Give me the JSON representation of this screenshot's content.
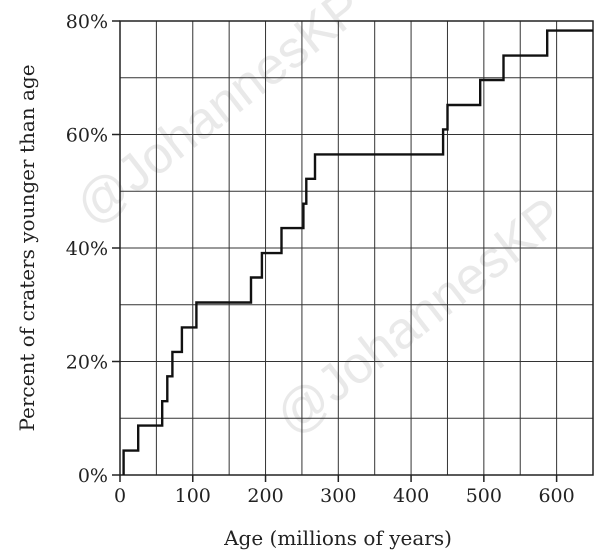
{
  "chart_data": {
    "type": "line",
    "step": true,
    "xlabel": "Age (millions of years)",
    "ylabel": "Percent of craters younger than age",
    "xlim": [
      0,
      650
    ],
    "ylim": [
      0,
      80
    ],
    "xticks": [
      0,
      100,
      200,
      300,
      400,
      500,
      600
    ],
    "xtick_labels": [
      "0",
      "100",
      "200",
      "300",
      "400",
      "500",
      "600"
    ],
    "yticks": [
      0,
      20,
      40,
      60,
      80
    ],
    "ytick_labels": [
      "0%",
      "20%",
      "40%",
      "60%",
      "80%"
    ],
    "grid": true,
    "grid_x_step": 50,
    "grid_y_step": 10,
    "line_color": "#111111",
    "series": [
      {
        "x": [
          5,
          5,
          25,
          25,
          58,
          58,
          65,
          65,
          72,
          72,
          85,
          85,
          105,
          105,
          180,
          180,
          195,
          195,
          222,
          222,
          252,
          252,
          256,
          256,
          268,
          268,
          283,
          283,
          444,
          444,
          450,
          450,
          495,
          495,
          527,
          527,
          587,
          587,
          650
        ],
        "y": [
          0,
          4.3,
          4.3,
          8.7,
          8.7,
          13,
          13,
          17.4,
          17.4,
          21.7,
          21.7,
          26,
          26,
          30.4,
          30.4,
          34.8,
          34.8,
          39.1,
          39.1,
          43.5,
          43.5,
          47.8,
          47.8,
          52.2,
          52.2,
          56.5,
          56.5,
          56.5,
          56.5,
          60.9,
          60.9,
          65.2,
          65.2,
          69.6,
          69.6,
          73.9,
          73.9,
          78.3,
          78.3
        ]
      }
    ],
    "watermark": "@JohannesKP"
  }
}
